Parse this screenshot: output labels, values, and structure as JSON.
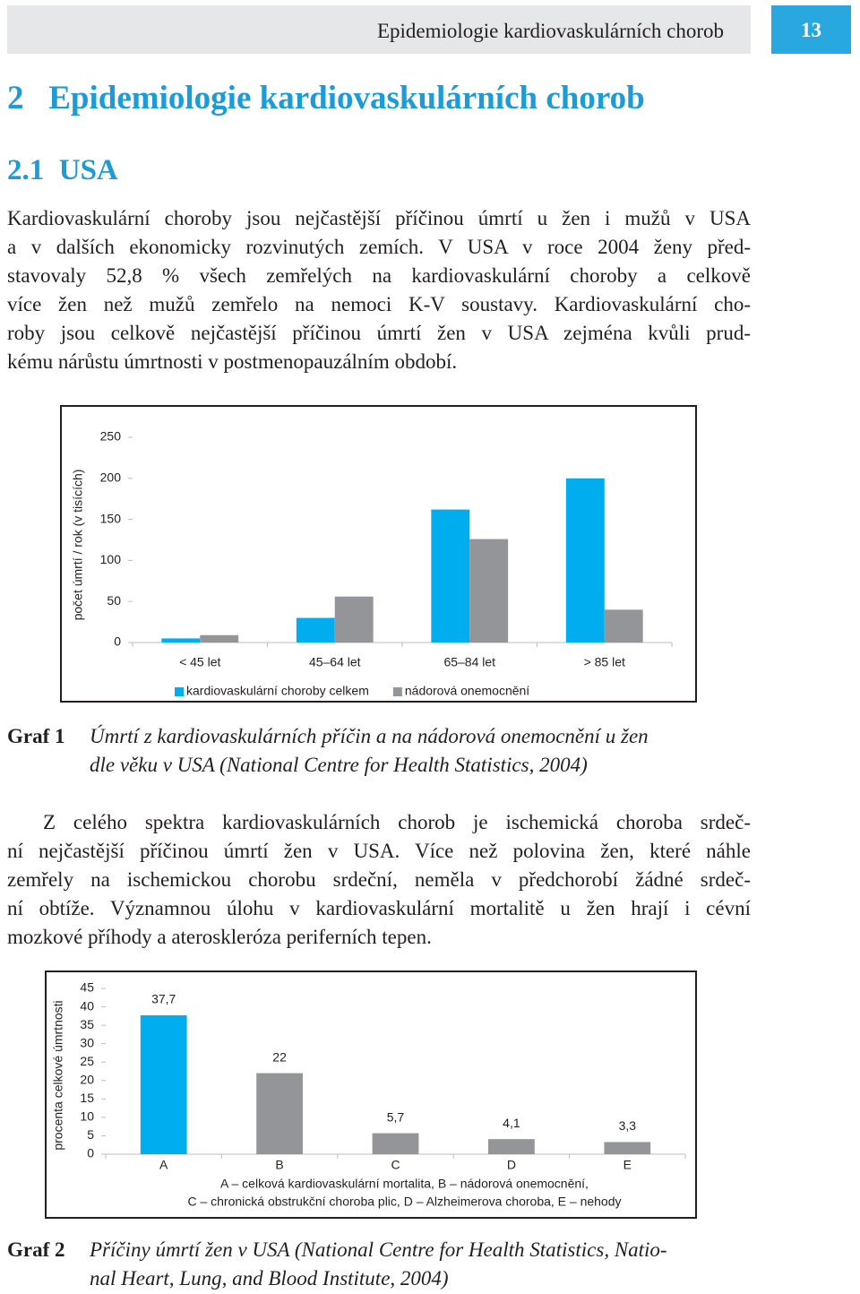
{
  "header": {
    "title": "Epidemiologie kardiovaskulárních chorob",
    "page": "13"
  },
  "chapter": {
    "number": "2",
    "title": "Epidemiologie kardiovaskulárních chorob"
  },
  "section": {
    "number": "2.1",
    "title": "USA"
  },
  "paragraphs": [
    {
      "indent": false,
      "lines": [
        "Kardiovaskulární choroby jsou nejčastější příčinou úmrtí u žen i mužů v USA",
        "a v dalších ekonomicky rozvinutých zemích. V USA v roce 2004 ženy před-",
        "stavovaly 52,8 % všech zemřelých na kardiovaskulární choroby a celkově",
        "více žen než mužů zemřelo na nemoci K-V soustavy. Kardiovaskulární cho-",
        "roby jsou celkově nejčastější příčinou úmrtí žen v USA zejména kvůli prud-",
        "kému nárůstu úmrtnosti v postmenopauzálním období."
      ]
    },
    {
      "indent": true,
      "lines": [
        "Z celého spektra kardiovaskulárních chorob je ischemická choroba srdeč-",
        "ní nejčastější příčinou úmrtí žen v USA. Více než polovina žen, které náhle",
        "zemřely na ischemickou chorobu srdeční, neměla v předchorobí žádné srdeč-",
        "ní obtíže. Významnou úlohu v kardiovaskulární mortalitě u žen hrají i cévní",
        "mozkové příhody a ateroskleróza periferních tepen."
      ]
    }
  ],
  "chart_data": [
    {
      "type": "grouped-bar",
      "y_label": "počet úmrtí / rok (v tisících)",
      "categories": [
        "< 45 let",
        "45–64 let",
        "65–84 let",
        "> 85 let"
      ],
      "series": [
        {
          "name": "kardiovaskulární choroby celkem",
          "color": "#00aeef",
          "values": [
            5,
            30,
            162,
            200
          ]
        },
        {
          "name": "nádorová onemocnění",
          "color": "#939598",
          "values": [
            9,
            56,
            126,
            40
          ]
        }
      ],
      "ylim": [
        0,
        250
      ],
      "yticks": [
        0,
        50,
        100,
        150,
        200,
        250
      ],
      "grid": false,
      "legend": "bottom"
    },
    {
      "type": "bar",
      "y_label": "procenta celkové úmrtnosti",
      "categories": [
        "A",
        "B",
        "C",
        "D",
        "E"
      ],
      "values": [
        37.7,
        22,
        5.7,
        4.1,
        3.3
      ],
      "value_labels": [
        "37,7",
        "22",
        "5,7",
        "4,1",
        "3,3"
      ],
      "colors": [
        "#00aeef",
        "#939598",
        "#939598",
        "#939598",
        "#939598"
      ],
      "ylim": [
        0,
        45
      ],
      "yticks": [
        0,
        5,
        10,
        15,
        20,
        25,
        30,
        35,
        40,
        45
      ],
      "grid": false,
      "note": [
        "A – celková kardiovaskulární mortalita, B – nádorová onemocnění,",
        "C – chronická obstrukční choroba plic, D – Alzheimerova choroba, E – nehody"
      ]
    }
  ],
  "captions": [
    {
      "label": "Graf 1",
      "lines": [
        "Úmrtí z kardiovaskulárních příčin a na nádorová onemocnění u žen",
        "dle věku v USA (National Centre for Health Statistics, 2004)"
      ]
    },
    {
      "label": "Graf 2",
      "lines": [
        "Příčiny úmrtí žen v USA (National Centre for Health Statistics, Natio-",
        "nal Heart, Lung, and Blood Institute, 2004)"
      ]
    }
  ]
}
